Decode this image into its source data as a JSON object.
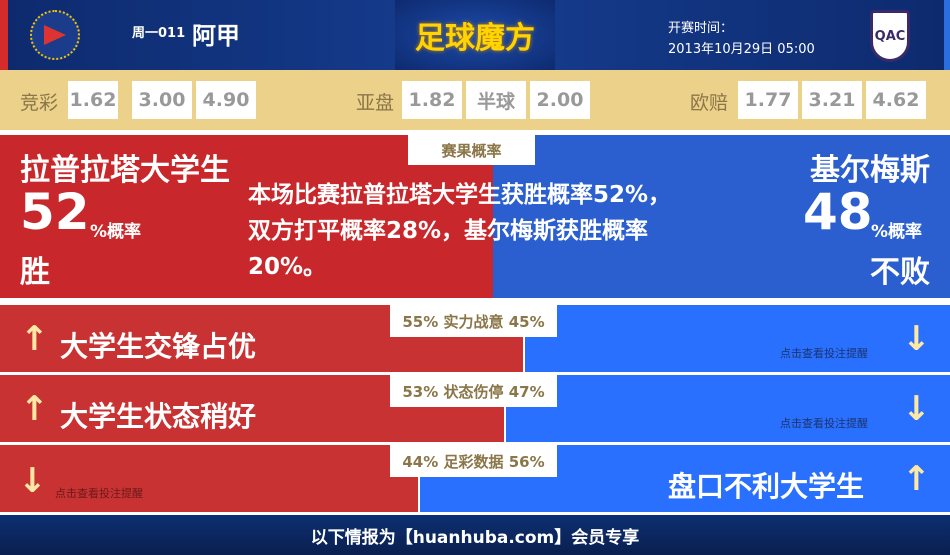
{
  "header": {
    "match_no": "周一011",
    "league": "阿甲",
    "brand": "足球魔方",
    "kickoff_label": "开赛时间：",
    "kickoff_time": "2013年10月29日 05:00",
    "away_logo_text": "QAC"
  },
  "odds": {
    "jingcai": {
      "label": "竞彩",
      "values": [
        "1.62",
        "3.00",
        "4.90"
      ]
    },
    "yapan": {
      "label": "亚盘",
      "values": [
        "1.82",
        "半球",
        "2.00"
      ]
    },
    "oupei": {
      "label": "欧赔",
      "values": [
        "1.77",
        "3.21",
        "4.62"
      ]
    }
  },
  "prob": {
    "tag": "赛果概率",
    "home": {
      "name": "拉普拉塔大学生",
      "pct": "52",
      "unit": "%概率",
      "result": "胜"
    },
    "away": {
      "name": "基尔梅斯",
      "pct": "48",
      "unit": "%概率",
      "result": "不败"
    },
    "summary": "本场比赛拉普拉塔大学生获胜概率52%，双方打平概率28%，基尔梅斯获胜概率20%。"
  },
  "rows": [
    {
      "label": "55% 实力战意 45%",
      "home_pct": 55,
      "text": "大学生交锋占优",
      "hint": "点击查看投注提醒",
      "side": "home"
    },
    {
      "label": "53% 状态伤停 47%",
      "home_pct": 53,
      "text": "大学生状态稍好",
      "hint": "点击查看投注提醒",
      "side": "home"
    },
    {
      "label": "44% 足彩数据 56%",
      "home_pct": 44,
      "text": "盘口不利大学生",
      "hint": "点击查看投注提醒",
      "side": "away"
    }
  ],
  "footer": "以下情报为【huanhuba.com】会员专享",
  "colors": {
    "home": "#c83232",
    "away": "#2970ff",
    "odds_bg": "#ecd18a",
    "header": "#0d2a6e"
  }
}
